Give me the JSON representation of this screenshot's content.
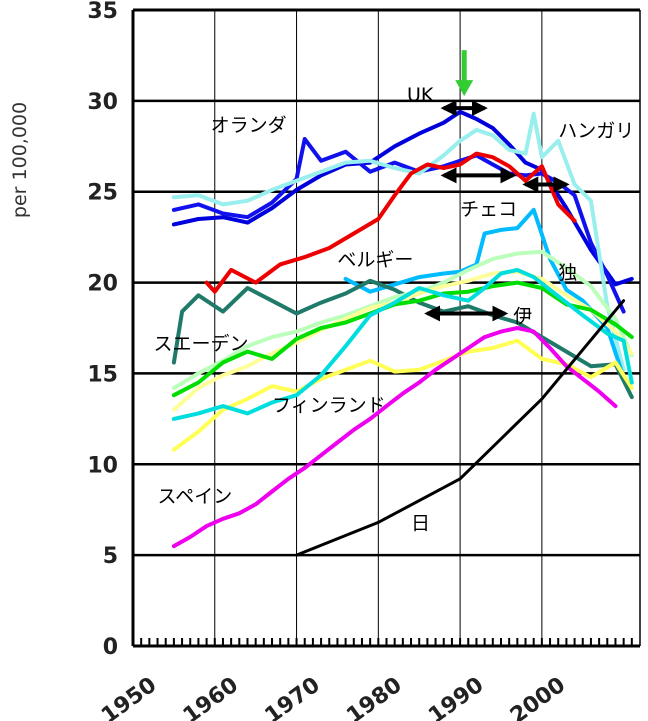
{
  "chart_data": {
    "type": "line",
    "title": "",
    "xlabel": "",
    "ylabel": "per 100,000",
    "xlim": [
      1950,
      2012
    ],
    "ylim": [
      0,
      35
    ],
    "x_ticks": [
      "1950",
      "1960",
      "1970",
      "1980",
      "1990",
      "2000"
    ],
    "y_ticks": [
      "0",
      "5",
      "10",
      "15",
      "20",
      "25",
      "30",
      "35"
    ],
    "grid": true,
    "legend": "none (inline labels)",
    "series": [
      {
        "name": "UK",
        "color": "#0000dd",
        "x": [
          1955,
          1958,
          1961,
          1964,
          1967,
          1970,
          1973,
          1976,
          1979,
          1982,
          1985,
          1988,
          1990,
          1992,
          1994,
          1996,
          1998,
          2000,
          2003,
          2006,
          2009,
          2011
        ],
        "y": [
          23.2,
          23.5,
          23.6,
          23.3,
          24.1,
          25.1,
          25.9,
          26.5,
          26.6,
          27.5,
          28.2,
          28.8,
          29.4,
          29.0,
          28.5,
          27.6,
          26.6,
          26.2,
          24.1,
          21.8,
          19.9,
          20.2
        ]
      },
      {
        "name": "オランダ",
        "color": "#1111ee",
        "x": [
          1955,
          1958,
          1961,
          1964,
          1967,
          1970,
          1971,
          1973,
          1976,
          1979,
          1982,
          1985,
          1988,
          1990,
          1992,
          1994,
          1996,
          1998,
          2000,
          2002,
          2004,
          2006,
          2008,
          2010
        ],
        "y": [
          24.0,
          24.3,
          23.8,
          23.6,
          24.4,
          25.7,
          27.9,
          26.7,
          27.2,
          26.1,
          26.6,
          26.1,
          26.4,
          26.7,
          27.0,
          26.5,
          26.0,
          25.9,
          26.0,
          25.5,
          24.8,
          22.2,
          20.4,
          18.4
        ]
      },
      {
        "name": "ハンガリ",
        "color": "#99eeee",
        "x": [
          1955,
          1958,
          1961,
          1964,
          1967,
          1970,
          1973,
          1976,
          1979,
          1982,
          1985,
          1988,
          1990,
          1992,
          1994,
          1996,
          1998,
          1999,
          2000,
          2002,
          2004,
          2006,
          2008,
          2010
        ],
        "y": [
          24.7,
          24.8,
          24.3,
          24.5,
          25.1,
          25.6,
          26.1,
          26.6,
          26.7,
          26.3,
          26.0,
          27.0,
          27.8,
          28.4,
          28.1,
          27.3,
          27.1,
          29.3,
          26.9,
          27.8,
          25.4,
          24.5,
          18.7,
          15.2
        ]
      },
      {
        "name": "チェコ",
        "color": "#00bbff",
        "x": [
          1976,
          1979,
          1982,
          1985,
          1988,
          1990,
          1992,
          1993,
          1995,
          1997,
          1999,
          2001,
          2003,
          2005,
          2008,
          2010
        ],
        "y": [
          20.2,
          19.5,
          19.9,
          20.3,
          20.5,
          20.6,
          21.0,
          22.7,
          22.9,
          23.0,
          24.0,
          21.3,
          19.6,
          19.0,
          17.5,
          14.8
        ]
      },
      {
        "name": "ベルギー",
        "color": "#ee0000",
        "x": [
          1959,
          1960,
          1962,
          1965,
          1968,
          1971,
          1974,
          1977,
          1980,
          1982,
          1984,
          1986,
          1988,
          1990,
          1992,
          1994,
          1996,
          1998,
          2000,
          2002,
          2004
        ],
        "y": [
          20.0,
          19.5,
          20.7,
          20.0,
          21.0,
          21.4,
          21.9,
          22.7,
          23.5,
          24.8,
          26.0,
          26.5,
          26.3,
          26.5,
          27.1,
          26.9,
          26.4,
          25.6,
          26.4,
          24.3,
          23.4
        ]
      },
      {
        "name": "スエーデン",
        "color": "#1f7a6a",
        "x": [
          1955,
          1956,
          1958,
          1961,
          1964,
          1967,
          1970,
          1973,
          1976,
          1979,
          1982,
          1985,
          1988,
          1991,
          1994,
          1997,
          2000,
          2003,
          2006,
          2009,
          2011
        ],
        "y": [
          15.6,
          18.4,
          19.3,
          18.4,
          19.7,
          19.0,
          18.3,
          18.9,
          19.4,
          20.1,
          19.6,
          18.9,
          18.4,
          18.7,
          18.2,
          17.8,
          17.0,
          16.2,
          15.4,
          15.5,
          13.7
        ]
      },
      {
        "name": "フィンランド",
        "color": "#ffff55",
        "x": [
          1955,
          1958,
          1961,
          1964,
          1967,
          1970,
          1973,
          1976,
          1979,
          1982,
          1985,
          1988,
          1991,
          1994,
          1997,
          2000,
          2003,
          2006,
          2009,
          2011
        ],
        "y": [
          10.8,
          11.8,
          13.0,
          13.6,
          14.3,
          14.0,
          14.7,
          15.2,
          15.7,
          15.1,
          15.2,
          15.7,
          16.2,
          16.4,
          16.8,
          15.8,
          15.5,
          14.8,
          15.6,
          14.2
        ]
      },
      {
        "name": "独",
        "color": "#bbffbb",
        "x": [
          1955,
          1958,
          1961,
          1964,
          1967,
          1970,
          1973,
          1976,
          1979,
          1982,
          1985,
          1988,
          1991,
          1994,
          1997,
          2000,
          2003,
          2006,
          2009,
          2011
        ],
        "y": [
          14.2,
          15.0,
          15.7,
          16.5,
          17.0,
          17.3,
          17.8,
          18.2,
          18.7,
          19.2,
          19.5,
          20.0,
          20.7,
          21.3,
          21.6,
          21.7,
          20.8,
          19.8,
          18.0,
          16.0
        ]
      },
      {
        "name": "伊",
        "color": "#ffff99",
        "x": [
          1955,
          1958,
          1961,
          1964,
          1967,
          1970,
          1973,
          1976,
          1979,
          1982,
          1985,
          1988,
          1991,
          1994,
          1997,
          2000,
          2003,
          2006,
          2009,
          2011
        ],
        "y": [
          13.0,
          14.2,
          14.9,
          15.4,
          16.1,
          16.7,
          17.4,
          18.0,
          18.6,
          18.9,
          19.4,
          19.8,
          20.1,
          20.5,
          20.6,
          20.2,
          19.3,
          18.5,
          17.3,
          16.1
        ]
      },
      {
        "name": "",
        "color": "#00dd00",
        "x": [
          1955,
          1958,
          1961,
          1964,
          1967,
          1970,
          1973,
          1976,
          1979,
          1982,
          1985,
          1988,
          1991,
          1994,
          1997,
          2000,
          2003,
          2006,
          2009,
          2011
        ],
        "y": [
          13.8,
          14.5,
          15.6,
          16.2,
          15.8,
          16.9,
          17.5,
          17.8,
          18.3,
          18.8,
          19.0,
          19.4,
          19.5,
          19.8,
          20.0,
          19.7,
          18.8,
          18.5,
          17.7,
          17.0
        ]
      },
      {
        "name": "",
        "color": "#00dddd",
        "x": [
          1955,
          1958,
          1961,
          1964,
          1967,
          1970,
          1973,
          1976,
          1979,
          1982,
          1985,
          1988,
          1991,
          1993,
          1995,
          1997,
          1999,
          2001,
          2003,
          2005,
          2008,
          2010,
          2011
        ],
        "y": [
          12.5,
          12.8,
          13.2,
          12.8,
          13.4,
          13.8,
          14.9,
          16.5,
          18.2,
          18.9,
          19.7,
          19.3,
          19.0,
          19.7,
          20.5,
          20.7,
          20.3,
          19.6,
          18.9,
          18.2,
          17.2,
          16.8,
          14.5
        ]
      },
      {
        "name": "スペイン",
        "color": "#ee00ee",
        "x": [
          1955,
          1957,
          1959,
          1961,
          1963,
          1965,
          1967,
          1969,
          1971,
          1973,
          1975,
          1977,
          1979,
          1981,
          1983,
          1985,
          1987,
          1989,
          1991,
          1993,
          1995,
          1997,
          1999,
          2001,
          2003,
          2005,
          2007,
          2009
        ],
        "y": [
          5.5,
          6.0,
          6.6,
          7.0,
          7.3,
          7.8,
          8.5,
          9.2,
          9.8,
          10.5,
          11.2,
          11.9,
          12.5,
          13.2,
          13.9,
          14.5,
          15.2,
          15.8,
          16.4,
          17.0,
          17.3,
          17.5,
          17.3,
          16.4,
          15.4,
          14.7,
          14.0,
          13.2
        ]
      },
      {
        "name": "日",
        "color": "#000000",
        "x": [
          1970,
          1980,
          1990,
          2000,
          2010
        ],
        "y": [
          5.0,
          6.8,
          9.2,
          13.6,
          19.0
        ]
      }
    ],
    "annotations": [
      {
        "text": "UK",
        "x": 1983.5,
        "y": 30.0
      },
      {
        "text": "オランダ",
        "x": 1959.5,
        "y": 28.3
      },
      {
        "text": "ハンガリ",
        "x": 2002.0,
        "y": 28.0
      },
      {
        "text": "チェコ",
        "x": 1990.0,
        "y": 23.7
      },
      {
        "text": "ベルギー",
        "x": 1975.0,
        "y": 20.9
      },
      {
        "text": "独",
        "x": 2002.0,
        "y": 20.2
      },
      {
        "text": "伊",
        "x": 1996.5,
        "y": 17.8
      },
      {
        "text": "スエーデン",
        "x": 1952.5,
        "y": 16.3
      },
      {
        "text": "フィンランド",
        "x": 1967.0,
        "y": 12.9
      },
      {
        "text": "スペイン",
        "x": 1953.0,
        "y": 7.9
      },
      {
        "text": "日",
        "x": 1984.0,
        "y": 6.4
      }
    ],
    "arrows": [
      {
        "from": 1988.0,
        "to": 1993.0,
        "y": 29.6
      },
      {
        "from": 1988.0,
        "to": 1996.5,
        "y": 25.9
      },
      {
        "from": 1998.0,
        "to": 2003.0,
        "y": 25.4
      },
      {
        "from": 1986.0,
        "to": 1995.5,
        "y": 18.3
      }
    ],
    "marker": {
      "x": 1990.5,
      "y": 29.6,
      "color": "#33cc33"
    }
  }
}
